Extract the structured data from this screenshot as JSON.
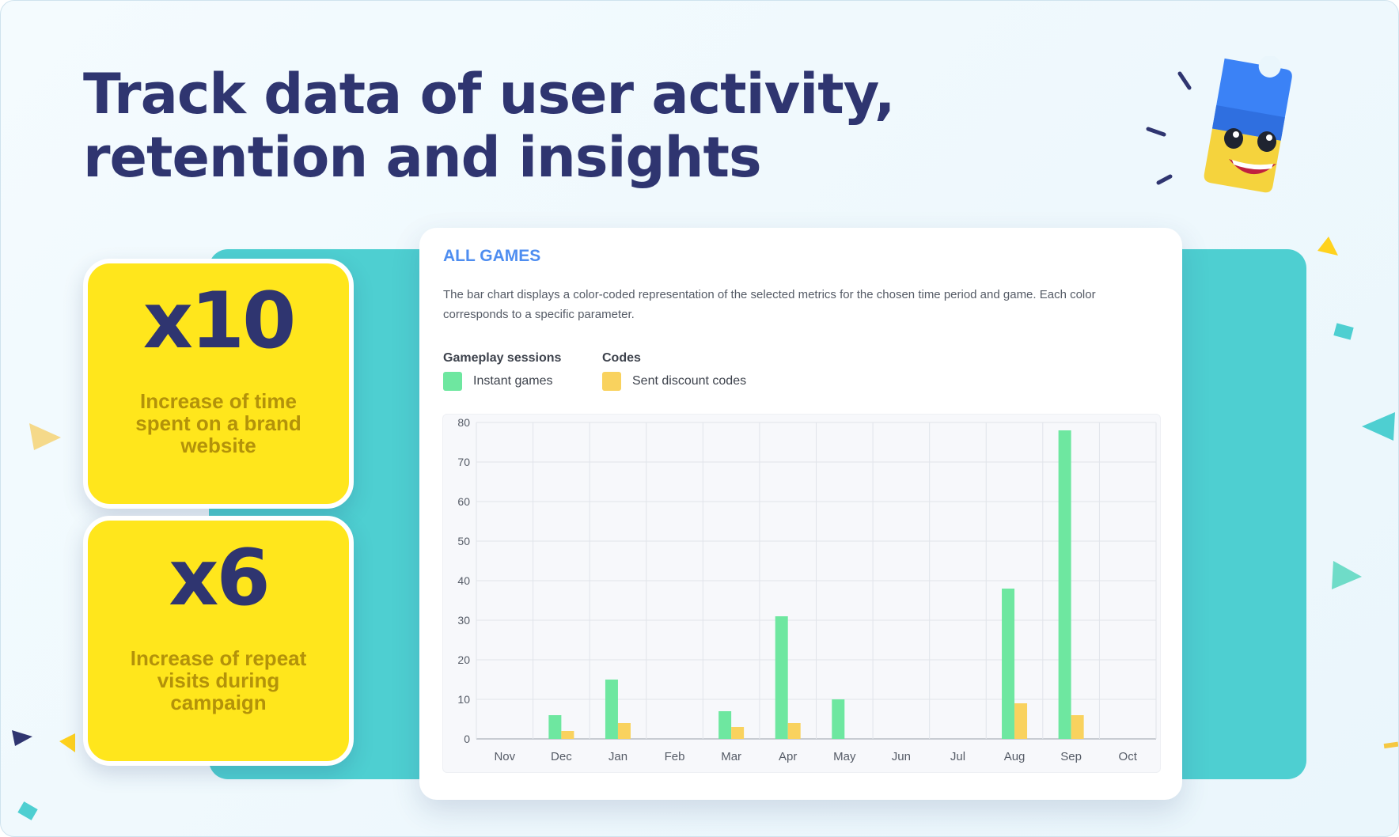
{
  "headline": {
    "line1": "Track data of user activity,",
    "line2": "retention and insights"
  },
  "stats": [
    {
      "value": "x10",
      "text": "Increase of time spent on a brand website"
    },
    {
      "value": "x6",
      "text": "Increase of repeat visits during campaign"
    }
  ],
  "chart_card": {
    "title": "ALL GAMES",
    "description": "The bar chart displays a color-coded representation of the selected metrics for the chosen time period and game. Each color corresponds to a specific parameter.",
    "legend": [
      {
        "group": "Gameplay sessions",
        "label": "Instant games",
        "color": "#6ee7a0"
      },
      {
        "group": "Codes",
        "label": "Sent discount codes",
        "color": "#f9d25e"
      }
    ]
  },
  "colors": {
    "title_text": "#2f3570",
    "teal_panel": "#4ecfd1",
    "stat_card": "#ffe61c",
    "chart_title": "#4e8df0"
  },
  "icons": [
    "ticket-mascot-icon",
    "confetti-triangle-icon",
    "confetti-square-icon"
  ],
  "chart_data": {
    "type": "bar",
    "categories": [
      "Nov",
      "Dec",
      "Jan",
      "Feb",
      "Mar",
      "Apr",
      "May",
      "Jun",
      "Jul",
      "Aug",
      "Sep",
      "Oct"
    ],
    "series": [
      {
        "name": "Instant games",
        "color": "#6ee7a0",
        "values": [
          0,
          6,
          15,
          0,
          7,
          31,
          10,
          0,
          0,
          38,
          78,
          0
        ]
      },
      {
        "name": "Sent discount codes",
        "color": "#f9d25e",
        "values": [
          0,
          2,
          4,
          0,
          3,
          4,
          0,
          0,
          0,
          9,
          6,
          0
        ]
      }
    ],
    "yticks": [
      0,
      10,
      20,
      30,
      40,
      50,
      60,
      70,
      80
    ],
    "ylim": [
      0,
      80
    ],
    "grid": true,
    "legend_position": "top-left"
  }
}
